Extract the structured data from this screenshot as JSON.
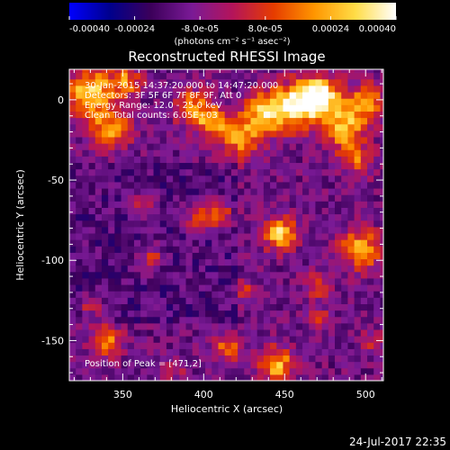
{
  "chart_data": {
    "type": "heatmap",
    "title": "Reconstructed RHESSI Image",
    "colorbar": {
      "min": -0.0004,
      "max": 0.0004,
      "ticks": [
        {
          "value": -0.0004,
          "label": "-0.00040"
        },
        {
          "value": -0.00024,
          "label": "-0.00024"
        },
        {
          "value": -8e-05,
          "label": "-8.0e-05"
        },
        {
          "value": 8e-05,
          "label": "8.0e-05"
        },
        {
          "value": 0.00024,
          "label": "0.00024"
        },
        {
          "value": 0.0004,
          "label": "0.00040"
        }
      ],
      "unit_label": "(photons cm⁻² s⁻¹ asec⁻²)",
      "colormap": [
        "#0000ff",
        "#00008c",
        "#3c005a",
        "#7a1a96",
        "#b4145a",
        "#e63c00",
        "#ff9600",
        "#ffdc46",
        "#ffffff"
      ]
    },
    "xlabel": "Heliocentric X (arcsec)",
    "ylabel": "Heliocentric Y (arcsec)",
    "xlim": [
      317,
      511
    ],
    "ylim": [
      -175,
      19
    ],
    "xticks": [
      350,
      400,
      450,
      500
    ],
    "yticks": [
      -150,
      -100,
      -50,
      0
    ],
    "info_lines": [
      "30-Jan-2015 14:37:20.000 to 14:47:20.000",
      "Detectors: 3F 5F 6F 7F 8F 9F, Att 0",
      "Energy Range: 12.0 - 25.0 keV",
      "Clean    Total counts: 6.05E+03"
    ],
    "peak_label": "Position of Peak = [471,2]",
    "peak": {
      "x": 471,
      "y": 2
    },
    "blobs": [
      {
        "x": 330,
        "y": 5,
        "sigma": 10,
        "amp": 0.00042
      },
      {
        "x": 342,
        "y": -18,
        "sigma": 9,
        "amp": 0.00032
      },
      {
        "x": 352,
        "y": 12,
        "sigma": 7,
        "amp": 0.00028
      },
      {
        "x": 393,
        "y": -4,
        "sigma": 8,
        "amp": 0.0003
      },
      {
        "x": 405,
        "y": -14,
        "sigma": 7,
        "amp": 0.0003
      },
      {
        "x": 422,
        "y": -24,
        "sigma": 9,
        "amp": 0.0003
      },
      {
        "x": 437,
        "y": -8,
        "sigma": 9,
        "amp": 0.00036
      },
      {
        "x": 455,
        "y": -4,
        "sigma": 10,
        "amp": 0.0004
      },
      {
        "x": 471,
        "y": 2,
        "sigma": 9,
        "amp": 0.00055
      },
      {
        "x": 486,
        "y": -18,
        "sigma": 9,
        "amp": 0.00036
      },
      {
        "x": 500,
        "y": -2,
        "sigma": 9,
        "amp": 0.0003
      },
      {
        "x": 495,
        "y": -38,
        "sigma": 7,
        "amp": 0.00024
      },
      {
        "x": 396,
        "y": -74,
        "sigma": 6,
        "amp": 0.00022
      },
      {
        "x": 409,
        "y": -72,
        "sigma": 6,
        "amp": 0.00032
      },
      {
        "x": 447,
        "y": -83,
        "sigma": 7,
        "amp": 0.00042
      },
      {
        "x": 362,
        "y": -66,
        "sigma": 5,
        "amp": 0.00018
      },
      {
        "x": 368,
        "y": -98,
        "sigma": 5,
        "amp": 0.00022
      },
      {
        "x": 497,
        "y": -93,
        "sigma": 9,
        "amp": 0.00034
      },
      {
        "x": 470,
        "y": -115,
        "sigma": 6,
        "amp": 0.00022
      },
      {
        "x": 425,
        "y": -118,
        "sigma": 5,
        "amp": 0.00016
      },
      {
        "x": 470,
        "y": -135,
        "sigma": 5,
        "amp": 0.00018
      },
      {
        "x": 340,
        "y": -150,
        "sigma": 7,
        "amp": 0.00028
      },
      {
        "x": 330,
        "y": -128,
        "sigma": 5,
        "amp": 0.00018
      },
      {
        "x": 415,
        "y": -154,
        "sigma": 6,
        "amp": 0.00026
      },
      {
        "x": 445,
        "y": -165,
        "sigma": 8,
        "amp": 0.00036
      },
      {
        "x": 382,
        "y": -167,
        "sigma": 5,
        "amp": 0.00016
      },
      {
        "x": 505,
        "y": -150,
        "sigma": 5,
        "amp": 0.00018
      }
    ]
  },
  "footer": {
    "timestamp": "24-Jul-2017 22:35"
  }
}
